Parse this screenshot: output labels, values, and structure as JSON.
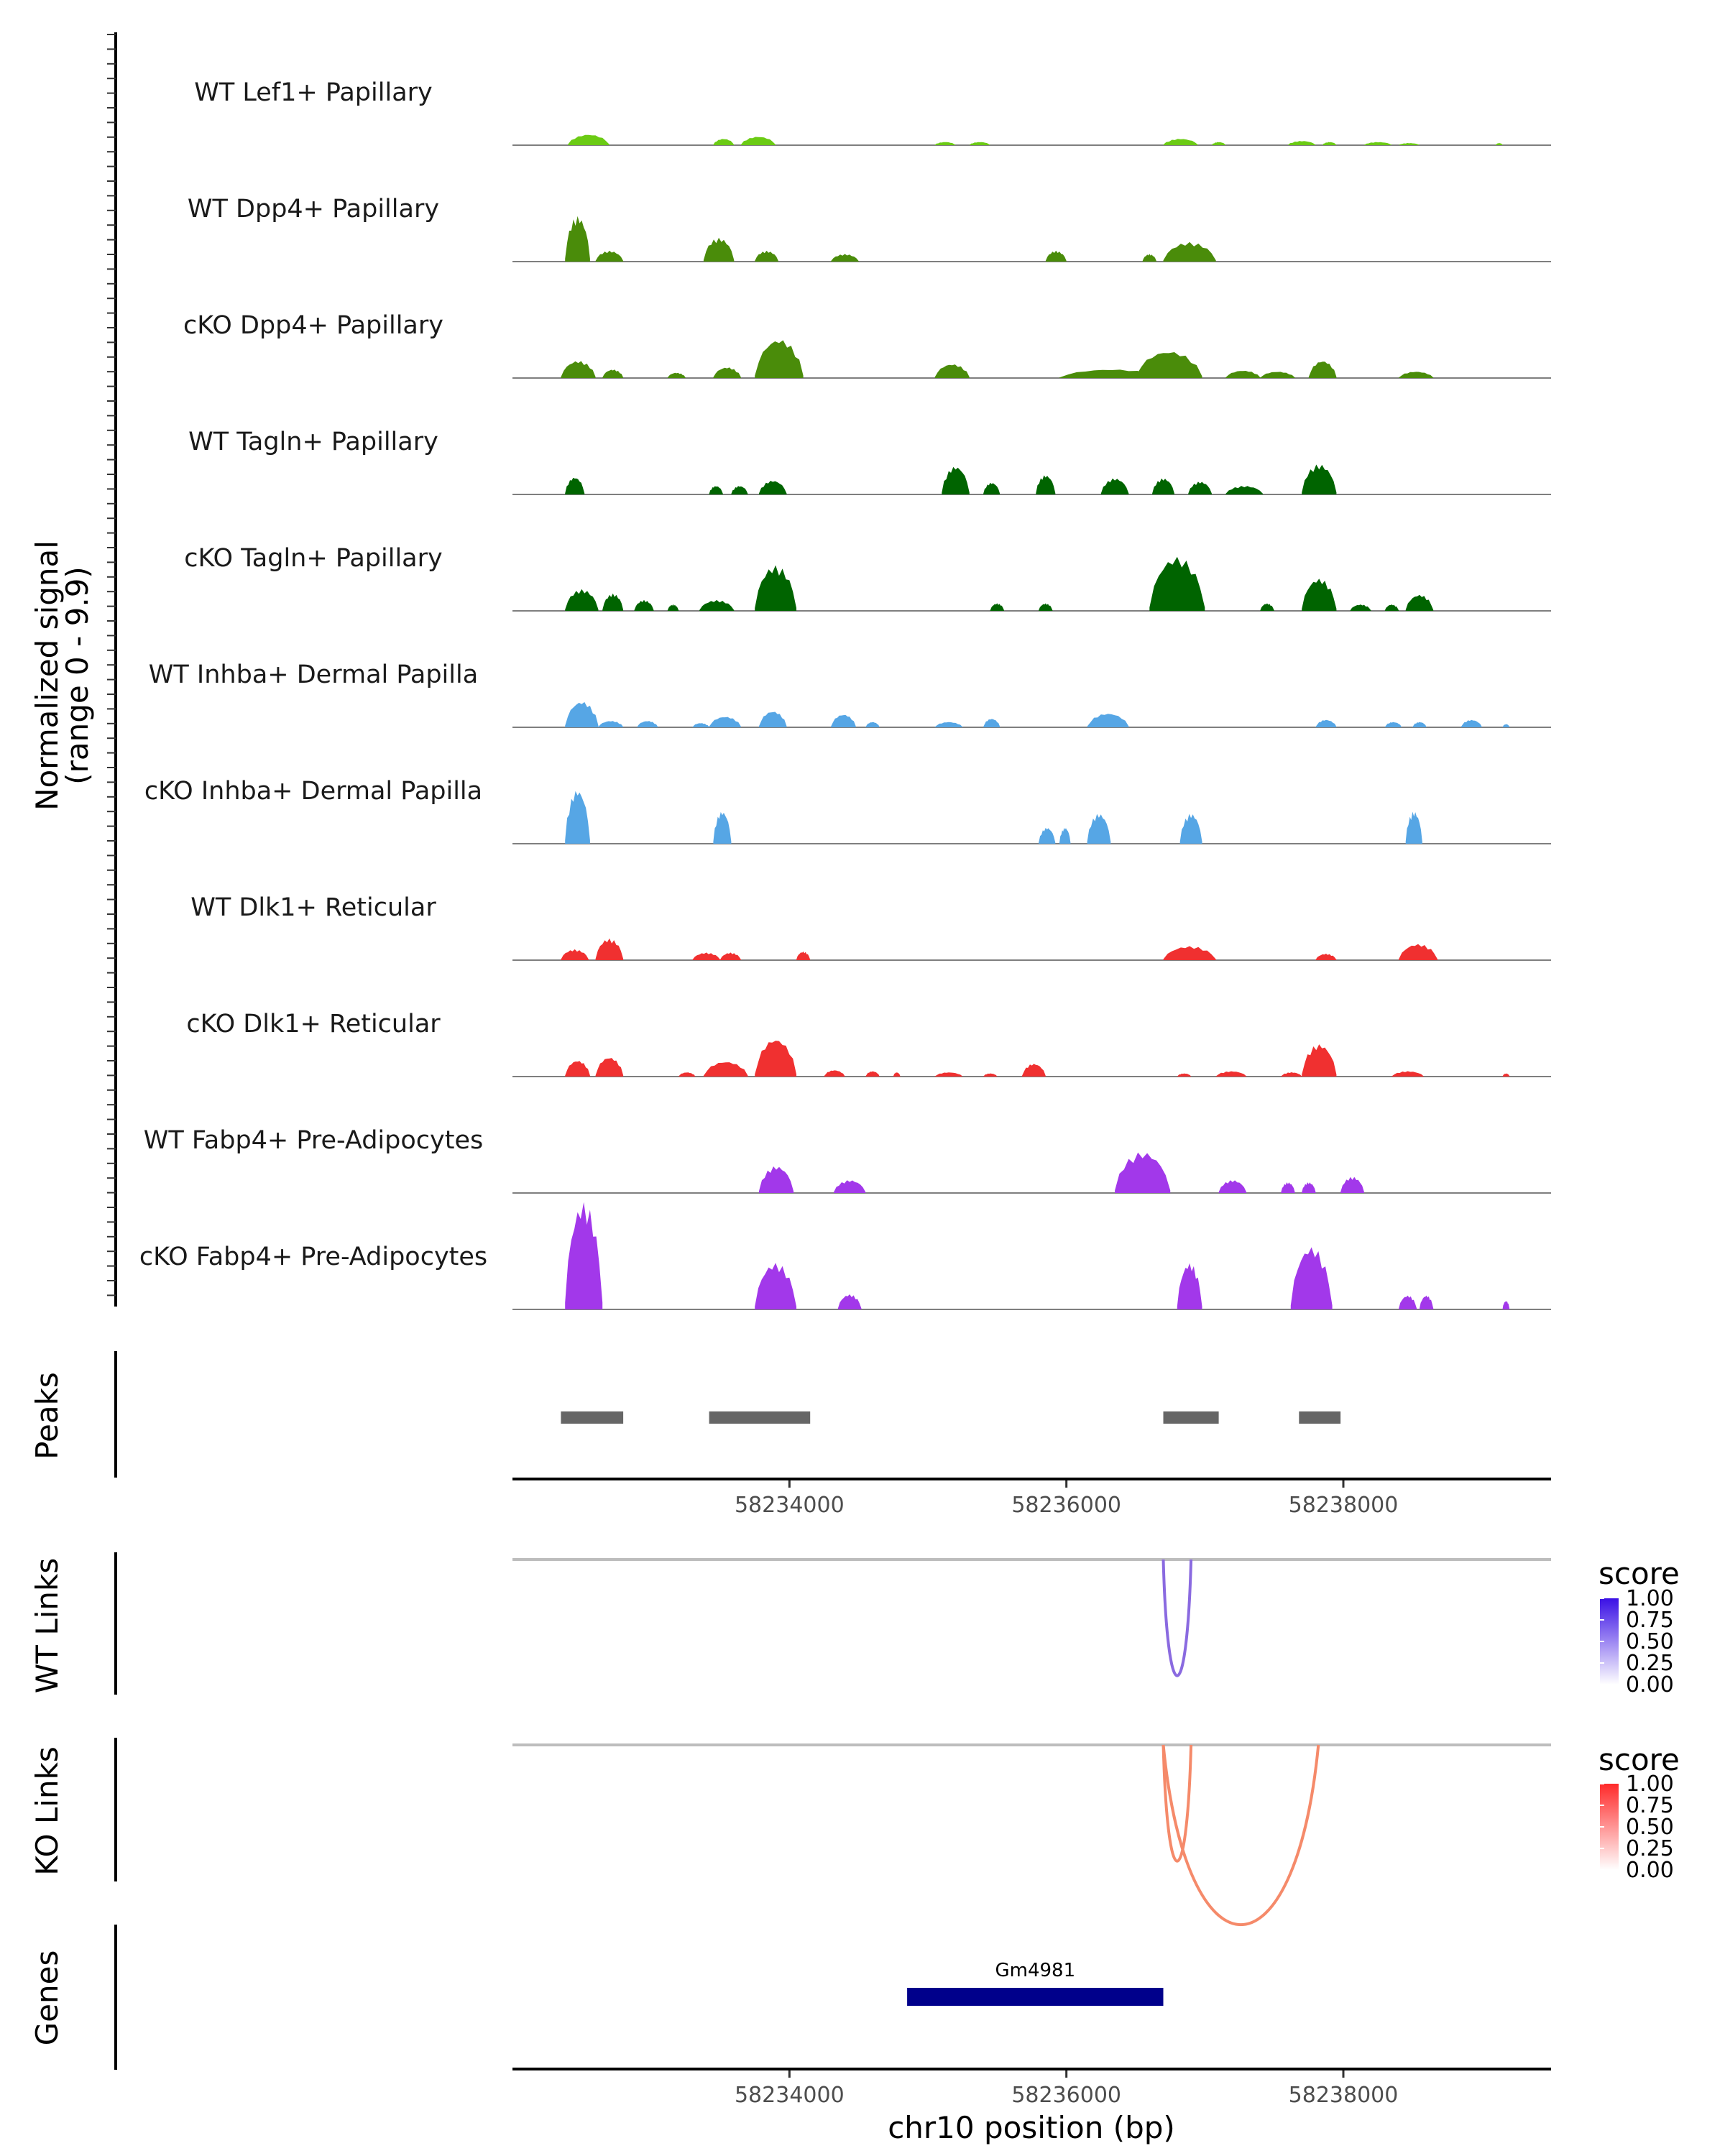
{
  "chart_data": {
    "type": "area",
    "region": {
      "chrom": "chr10",
      "start": 58232000,
      "end": 58239500
    },
    "coverage": {
      "ylabel_line1": "Normalized signal",
      "ylabel_line2": "(range 0 - 9.9)",
      "ylim": [
        0,
        9.9
      ],
      "tracks": [
        {
          "name": "WT Lef1+ Papillary",
          "color": "#6BCB14",
          "peaks": [
            [
              58232400,
              58232700,
              1.0
            ],
            [
              58233450,
              58233600,
              0.6
            ],
            [
              58233650,
              58233900,
              0.8
            ],
            [
              58235050,
              58235200,
              0.3
            ],
            [
              58235300,
              58235450,
              0.3
            ],
            [
              58236700,
              58236950,
              0.6
            ],
            [
              58237050,
              58237150,
              0.3
            ],
            [
              58237600,
              58237800,
              0.4
            ],
            [
              58237850,
              58237950,
              0.3
            ],
            [
              58238150,
              58238350,
              0.3
            ],
            [
              58238400,
              58238550,
              0.2
            ],
            [
              58239100,
              58239150,
              0.2
            ]
          ]
        },
        {
          "name": "WT Dpp4+ Papillary",
          "color": "#4A8C0A",
          "peaks": [
            [
              58232380,
              58232560,
              4.2
            ],
            [
              58232600,
              58232800,
              1.0
            ],
            [
              58233380,
              58233600,
              2.2
            ],
            [
              58233750,
              58233920,
              1.0
            ],
            [
              58234300,
              58234500,
              0.7
            ],
            [
              58235850,
              58236000,
              1.0
            ],
            [
              58236550,
              58236650,
              0.7
            ],
            [
              58236700,
              58237080,
              1.8
            ]
          ]
        },
        {
          "name": "cKO Dpp4+ Papillary",
          "color": "#4A8C0A",
          "peaks": [
            [
              58232350,
              58232600,
              1.6
            ],
            [
              58232650,
              58232800,
              0.8
            ],
            [
              58233120,
              58233250,
              0.5
            ],
            [
              58233450,
              58233650,
              1.0
            ],
            [
              58233750,
              58234100,
              3.6
            ],
            [
              58235050,
              58235300,
              1.3
            ],
            [
              58235950,
              58236700,
              0.8
            ],
            [
              58236500,
              58236980,
              2.5
            ],
            [
              58237150,
              58237400,
              0.7
            ],
            [
              58237400,
              58237650,
              0.6
            ],
            [
              58237750,
              58237950,
              1.6
            ],
            [
              58238400,
              58238650,
              0.6
            ]
          ]
        },
        {
          "name": "WT Tagln+ Papillary",
          "color": "#006400",
          "peaks": [
            [
              58232380,
              58232520,
              1.6
            ],
            [
              58233420,
              58233520,
              0.8
            ],
            [
              58233580,
              58233700,
              0.8
            ],
            [
              58233780,
              58233980,
              1.3
            ],
            [
              58235100,
              58235300,
              2.6
            ],
            [
              58235400,
              58235520,
              1.1
            ],
            [
              58235780,
              58235920,
              1.8
            ],
            [
              58236250,
              58236450,
              1.5
            ],
            [
              58236620,
              58236780,
              1.5
            ],
            [
              58236880,
              58237050,
              1.2
            ],
            [
              58237150,
              58237420,
              0.8
            ],
            [
              58237700,
              58237950,
              2.8
            ]
          ]
        },
        {
          "name": "cKO Tagln+ Papillary",
          "color": "#006400",
          "peaks": [
            [
              58232380,
              58232620,
              2.0
            ],
            [
              58232650,
              58232800,
              1.6
            ],
            [
              58232880,
              58233020,
              1.0
            ],
            [
              58233120,
              58233200,
              0.6
            ],
            [
              58233350,
              58233600,
              1.0
            ],
            [
              58233750,
              58234050,
              4.2
            ],
            [
              58235450,
              58235550,
              0.7
            ],
            [
              58235800,
              58235900,
              0.7
            ],
            [
              58236600,
              58237000,
              5.0
            ],
            [
              58237400,
              58237500,
              0.7
            ],
            [
              58237700,
              58237950,
              3.0
            ],
            [
              58238050,
              58238200,
              0.6
            ],
            [
              58238300,
              58238400,
              0.6
            ],
            [
              58238450,
              58238650,
              1.5
            ]
          ]
        },
        {
          "name": "WT Inhba+ Dermal Papilla",
          "color": "#56A6E5",
          "peaks": [
            [
              58232380,
              58232620,
              2.4
            ],
            [
              58232620,
              58232800,
              0.6
            ],
            [
              58232900,
              58233050,
              0.6
            ],
            [
              58233300,
              58233420,
              0.4
            ],
            [
              58233420,
              58233650,
              1.0
            ],
            [
              58233780,
              58233980,
              1.5
            ],
            [
              58234300,
              58234480,
              1.2
            ],
            [
              58234550,
              58234650,
              0.5
            ],
            [
              58235050,
              58235250,
              0.5
            ],
            [
              58235400,
              58235520,
              0.8
            ],
            [
              58236150,
              58236450,
              1.3
            ],
            [
              58237800,
              58237950,
              0.7
            ],
            [
              58238300,
              58238420,
              0.5
            ],
            [
              58238500,
              58238600,
              0.5
            ],
            [
              58238850,
              58239000,
              0.7
            ],
            [
              58239150,
              58239200,
              0.3
            ]
          ]
        },
        {
          "name": "cKO Inhba+ Dermal Papilla",
          "color": "#56A6E5",
          "peaks": [
            [
              58232380,
              58232560,
              5.0
            ],
            [
              58233450,
              58233580,
              3.0
            ],
            [
              58235800,
              58235920,
              1.5
            ],
            [
              58235950,
              58236030,
              1.5
            ],
            [
              58236150,
              58236320,
              2.8
            ],
            [
              58236820,
              58236980,
              2.8
            ],
            [
              58238450,
              58238570,
              3.0
            ]
          ]
        },
        {
          "name": "WT Dlk1+ Reticular",
          "color": "#F03030",
          "peaks": [
            [
              58232350,
              58232550,
              1.0
            ],
            [
              58232600,
              58232800,
              2.0
            ],
            [
              58233300,
              58233500,
              0.7
            ],
            [
              58233500,
              58233650,
              0.7
            ],
            [
              58234050,
              58234150,
              0.8
            ],
            [
              58236700,
              58237080,
              1.3
            ],
            [
              58237800,
              58237950,
              0.6
            ],
            [
              58238400,
              58238680,
              1.5
            ]
          ]
        },
        {
          "name": "cKO Dlk1+ Reticular",
          "color": "#F03030",
          "peaks": [
            [
              58232380,
              58232560,
              1.5
            ],
            [
              58232600,
              58232800,
              1.8
            ],
            [
              58233200,
              58233320,
              0.4
            ],
            [
              58233380,
              58233700,
              1.4
            ],
            [
              58233750,
              58234050,
              3.5
            ],
            [
              58234250,
              58234400,
              0.6
            ],
            [
              58234550,
              58234650,
              0.5
            ],
            [
              58234750,
              58234800,
              0.4
            ],
            [
              58235050,
              58235250,
              0.4
            ],
            [
              58235400,
              58235500,
              0.3
            ],
            [
              58235680,
              58235850,
              1.2
            ],
            [
              58236800,
              58236900,
              0.3
            ],
            [
              58237080,
              58237300,
              0.5
            ],
            [
              58237550,
              58237700,
              0.4
            ],
            [
              58237700,
              58237950,
              3.0
            ],
            [
              58238350,
              58238580,
              0.5
            ],
            [
              58239150,
              58239200,
              0.3
            ]
          ]
        },
        {
          "name": "WT Fabp4+ Pre-Adipocytes",
          "color": "#A238EA",
          "peaks": [
            [
              58233780,
              58234030,
              2.5
            ],
            [
              58234320,
              58234550,
              1.2
            ],
            [
              58236350,
              58236750,
              3.8
            ],
            [
              58237100,
              58237300,
              1.2
            ],
            [
              58237550,
              58237650,
              1.0
            ],
            [
              58237700,
              58237800,
              1.0
            ],
            [
              58237980,
              58238150,
              1.5
            ]
          ]
        },
        {
          "name": "cKO Fabp4+ Pre-Adipocytes",
          "color": "#A238EA",
          "peaks": [
            [
              58232380,
              58232650,
              9.9
            ],
            [
              58233750,
              58234050,
              4.3
            ],
            [
              58234350,
              58234520,
              1.4
            ],
            [
              58236800,
              58236980,
              4.3
            ],
            [
              58237620,
              58237920,
              5.8
            ],
            [
              58238400,
              58238530,
              1.3
            ],
            [
              58238550,
              58238650,
              1.3
            ],
            [
              58239150,
              58239200,
              0.8
            ]
          ]
        }
      ]
    },
    "peaks_track": {
      "label": "Peaks",
      "regions": [
        [
          58232350,
          58232800
        ],
        [
          58233420,
          58234150
        ],
        [
          58236700,
          58237100
        ],
        [
          58237680,
          58237980
        ]
      ]
    },
    "x_axis": {
      "ticks": [
        58234000,
        58236000,
        58238000
      ],
      "tick_labels": [
        "58234000",
        "58236000",
        "58238000"
      ],
      "title": "chr10 position (bp)"
    },
    "links": [
      {
        "label": "WT Links",
        "legend_title": "score",
        "color_high": "#3A10E5",
        "legend_labels": [
          "1.00",
          "0.75",
          "0.50",
          "0.25",
          "0.00"
        ],
        "arcs": [
          {
            "start": 58236700,
            "end": 58236900,
            "score": 0.65,
            "color": "#8A6AE0"
          }
        ]
      },
      {
        "label": "KO Links",
        "legend_title": "score",
        "color_high": "#FF2A2A",
        "legend_labels": [
          "1.00",
          "0.75",
          "0.50",
          "0.25",
          "0.00"
        ],
        "arcs": [
          {
            "start": 58236700,
            "end": 58236900,
            "score": 0.5,
            "color": "#F58A6A"
          },
          {
            "start": 58236700,
            "end": 58237820,
            "score": 0.5,
            "color": "#F58A6A"
          }
        ]
      }
    ],
    "genes": {
      "label": "Genes",
      "items": [
        {
          "name": "Gm4981",
          "start": 58234850,
          "end": 58236700,
          "color": "#00008B"
        }
      ]
    }
  }
}
